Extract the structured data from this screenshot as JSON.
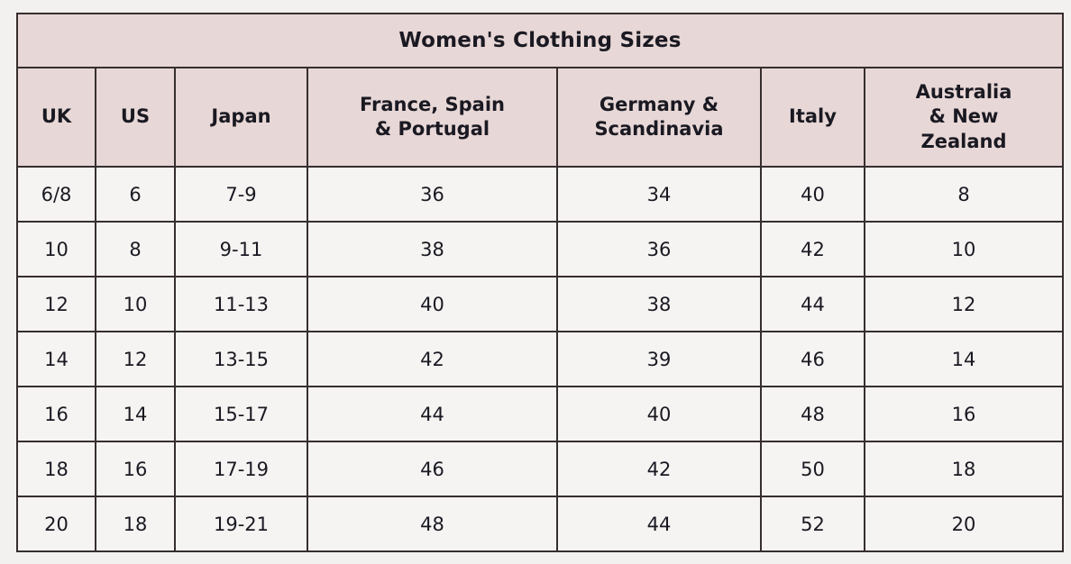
{
  "colors": {
    "header_bg": "#e7d7d6",
    "body_bg": "#f5f4f2",
    "border_color": "#362e2e",
    "text_color": "#1a1922",
    "page_bg": "#f2f1ef"
  },
  "table": {
    "title": "Women's Clothing Sizes",
    "columns": [
      "UK",
      "US",
      "Japan",
      "France, Spain & Portugal",
      "Germany & Scandinavia",
      "Italy",
      "Australia & New Zealand"
    ],
    "rows": [
      [
        "6/8",
        "6",
        "7-9",
        "36",
        "34",
        "40",
        "8"
      ],
      [
        "10",
        "8",
        "9-11",
        "38",
        "36",
        "42",
        "10"
      ],
      [
        "12",
        "10",
        "11-13",
        "40",
        "38",
        "44",
        "12"
      ],
      [
        "14",
        "12",
        "13-15",
        "42",
        "39",
        "46",
        "14"
      ],
      [
        "16",
        "14",
        "15-17",
        "44",
        "40",
        "48",
        "16"
      ],
      [
        "18",
        "16",
        "17-19",
        "46",
        "42",
        "50",
        "18"
      ],
      [
        "20",
        "18",
        "19-21",
        "48",
        "44",
        "52",
        "20"
      ]
    ]
  },
  "chart_data": {
    "type": "table",
    "title": "Women's Clothing Sizes",
    "columns": [
      "UK",
      "US",
      "Japan",
      "France, Spain & Portugal",
      "Germany & Scandinavia",
      "Italy",
      "Australia & New Zealand"
    ],
    "rows": [
      [
        "6/8",
        "6",
        "7-9",
        "36",
        "34",
        "40",
        "8"
      ],
      [
        "10",
        "8",
        "9-11",
        "38",
        "36",
        "42",
        "10"
      ],
      [
        "12",
        "10",
        "11-13",
        "40",
        "38",
        "44",
        "12"
      ],
      [
        "14",
        "12",
        "13-15",
        "42",
        "39",
        "46",
        "14"
      ],
      [
        "16",
        "14",
        "15-17",
        "44",
        "40",
        "48",
        "16"
      ],
      [
        "18",
        "16",
        "17-19",
        "46",
        "42",
        "50",
        "18"
      ],
      [
        "20",
        "18",
        "19-21",
        "48",
        "44",
        "52",
        "20"
      ]
    ],
    "layout_hints": {
      "header_background": "#e7d7d6",
      "title_spans_all_columns": true,
      "all_cells_center_aligned": true,
      "grid": "on"
    }
  }
}
